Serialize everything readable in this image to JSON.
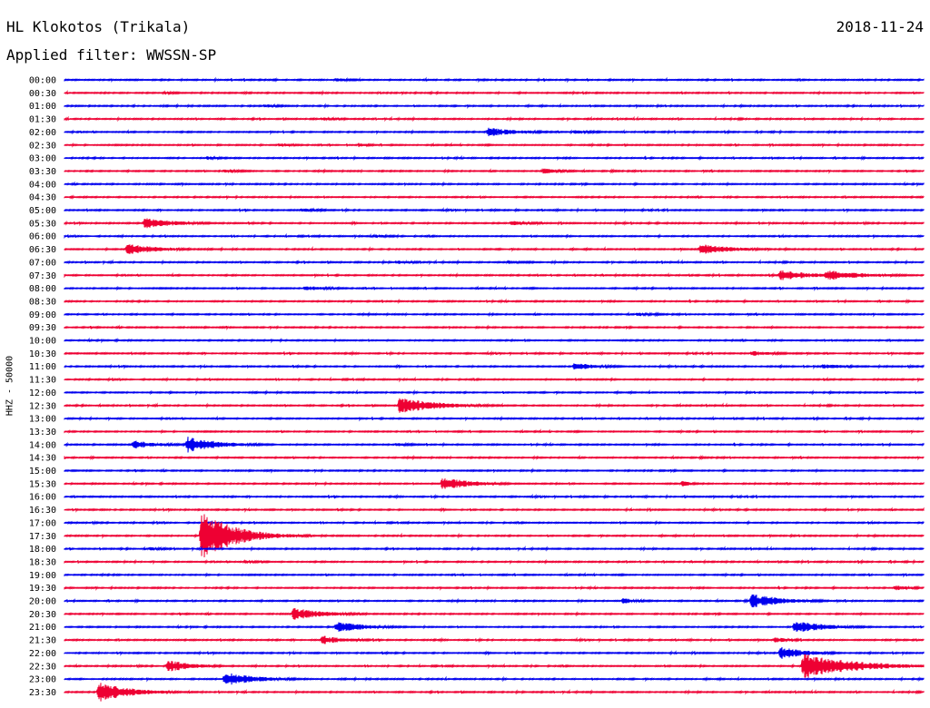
{
  "header": {
    "station": "HL Klokotos (Trikala)",
    "date": "2018-11-24",
    "filter": "Applied filter: WWSSN-SP"
  },
  "channel_label": "HHZ - 50000",
  "colors": {
    "even_row": "#0000ee",
    "odd_row": "#ee0033"
  },
  "chart_data": {
    "type": "line",
    "title": "HL Klokotos (Trikala)",
    "ylabel": "HHZ - 50000",
    "row_labels": [
      "00:00",
      "00:30",
      "01:00",
      "01:30",
      "02:00",
      "02:30",
      "03:00",
      "03:30",
      "04:00",
      "04:30",
      "05:00",
      "05:30",
      "06:00",
      "06:30",
      "07:00",
      "07:30",
      "08:00",
      "08:30",
      "09:00",
      "09:30",
      "10:00",
      "10:30",
      "11:00",
      "11:30",
      "12:00",
      "12:30",
      "13:00",
      "13:30",
      "14:00",
      "14:30",
      "15:00",
      "15:30",
      "16:00",
      "16:30",
      "17:00",
      "17:30",
      "18:00",
      "18:30",
      "19:00",
      "19:30",
      "20:00",
      "20:30",
      "21:00",
      "21:30",
      "22:00",
      "22:30",
      "23:00",
      "23:30"
    ],
    "row_minutes": 30,
    "events": [
      {
        "row": 0,
        "minute": 9.5,
        "amplitude": 2,
        "duration": 1.5
      },
      {
        "row": 1,
        "minute": 3.5,
        "amplitude": 1.5,
        "duration": 1.5
      },
      {
        "row": 2,
        "minute": 7.0,
        "amplitude": 2,
        "duration": 1.5
      },
      {
        "row": 3,
        "minute": 9.0,
        "amplitude": 2,
        "duration": 1.5
      },
      {
        "row": 4,
        "minute": 14.8,
        "amplitude": 5,
        "duration": 2.5
      },
      {
        "row": 4,
        "minute": 17.8,
        "amplitude": 2,
        "duration": 2.0
      },
      {
        "row": 5,
        "minute": 7.5,
        "amplitude": 2,
        "duration": 1.5
      },
      {
        "row": 5,
        "minute": 10.3,
        "amplitude": 3,
        "duration": 0.6
      },
      {
        "row": 6,
        "minute": 5.0,
        "amplitude": 2,
        "duration": 1.5
      },
      {
        "row": 7,
        "minute": 5.6,
        "amplitude": 2,
        "duration": 1.8
      },
      {
        "row": 7,
        "minute": 16.7,
        "amplitude": 3,
        "duration": 1.8
      },
      {
        "row": 10,
        "minute": 8.3,
        "amplitude": 2,
        "duration": 2.0
      },
      {
        "row": 11,
        "minute": 2.8,
        "amplitude": 6,
        "duration": 2.5
      },
      {
        "row": 11,
        "minute": 15.6,
        "amplitude": 2.5,
        "duration": 2.0
      },
      {
        "row": 12,
        "minute": 10.8,
        "amplitude": 2,
        "duration": 1.5
      },
      {
        "row": 13,
        "minute": 2.2,
        "amplitude": 6,
        "duration": 2.5
      },
      {
        "row": 13,
        "minute": 22.2,
        "amplitude": 6,
        "duration": 2.5
      },
      {
        "row": 14,
        "minute": 11.6,
        "amplitude": 2,
        "duration": 2.0
      },
      {
        "row": 14,
        "minute": 15.5,
        "amplitude": 2,
        "duration": 2.0
      },
      {
        "row": 15,
        "minute": 25.0,
        "amplitude": 6,
        "duration": 2.5
      },
      {
        "row": 15,
        "minute": 26.6,
        "amplitude": 6,
        "duration": 3.0
      },
      {
        "row": 16,
        "minute": 8.4,
        "amplitude": 3,
        "duration": 2.0
      },
      {
        "row": 18,
        "minute": 20.0,
        "amplitude": 2,
        "duration": 1.5
      },
      {
        "row": 21,
        "minute": 24.0,
        "amplitude": 3,
        "duration": 2.0
      },
      {
        "row": 22,
        "minute": 17.8,
        "amplitude": 4,
        "duration": 2.0
      },
      {
        "row": 22,
        "minute": 26.5,
        "amplitude": 3,
        "duration": 2.0
      },
      {
        "row": 25,
        "minute": 11.7,
        "amplitude": 9,
        "duration": 3.0
      },
      {
        "row": 28,
        "minute": 2.4,
        "amplitude": 5,
        "duration": 2.0
      },
      {
        "row": 28,
        "minute": 4.3,
        "amplitude": 9,
        "duration": 2.5
      },
      {
        "row": 28,
        "minute": 11.6,
        "amplitude": 2,
        "duration": 1.5
      },
      {
        "row": 31,
        "minute": 13.2,
        "amplitude": 7,
        "duration": 2.5
      },
      {
        "row": 31,
        "minute": 21.6,
        "amplitude": 4,
        "duration": 0.6
      },
      {
        "row": 35,
        "minute": 4.8,
        "amplitude": 28,
        "duration": 2.5
      },
      {
        "row": 36,
        "minute": 3.0,
        "amplitude": 2,
        "duration": 1.5
      },
      {
        "row": 37,
        "minute": 6.3,
        "amplitude": 2,
        "duration": 1.5
      },
      {
        "row": 39,
        "minute": 29.0,
        "amplitude": 3,
        "duration": 1.5
      },
      {
        "row": 40,
        "minute": 19.5,
        "amplitude": 3,
        "duration": 1.5
      },
      {
        "row": 40,
        "minute": 24.0,
        "amplitude": 8,
        "duration": 2.5
      },
      {
        "row": 41,
        "minute": 8.0,
        "amplitude": 7,
        "duration": 2.5
      },
      {
        "row": 42,
        "minute": 9.5,
        "amplitude": 6,
        "duration": 2.5
      },
      {
        "row": 42,
        "minute": 25.5,
        "amplitude": 7,
        "duration": 2.5
      },
      {
        "row": 43,
        "minute": 9.0,
        "amplitude": 5,
        "duration": 2.0
      },
      {
        "row": 43,
        "minute": 24.8,
        "amplitude": 3,
        "duration": 1.5
      },
      {
        "row": 44,
        "minute": 25.0,
        "amplitude": 7,
        "duration": 2.0
      },
      {
        "row": 45,
        "minute": 3.6,
        "amplitude": 7,
        "duration": 2.0
      },
      {
        "row": 45,
        "minute": 25.8,
        "amplitude": 14,
        "duration": 4.0
      },
      {
        "row": 46,
        "minute": 5.6,
        "amplitude": 8,
        "duration": 2.5
      },
      {
        "row": 46,
        "minute": 7.0,
        "amplitude": 2,
        "duration": 1.5
      },
      {
        "row": 47,
        "minute": 1.2,
        "amplitude": 11,
        "duration": 2.5
      }
    ]
  }
}
